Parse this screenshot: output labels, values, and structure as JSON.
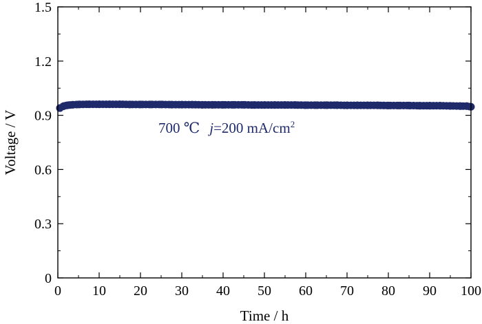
{
  "chart_data": {
    "type": "scatter",
    "title": "",
    "xlabel": "Time / h",
    "ylabel": "Voltage / V",
    "xlim": [
      0,
      100
    ],
    "ylim": [
      0,
      1.5
    ],
    "xticks": [
      0,
      10,
      20,
      30,
      40,
      50,
      60,
      70,
      80,
      90,
      100
    ],
    "yticks": [
      0,
      0.3,
      0.6,
      0.9,
      1.2,
      1.5
    ],
    "xtick_labels": [
      "0",
      "10",
      "20",
      "30",
      "40",
      "50",
      "60",
      "70",
      "80",
      "90",
      "100"
    ],
    "ytick_labels": [
      "0",
      "0.3",
      "0.6",
      "0.9",
      "1.2",
      "1.5"
    ],
    "grid": false,
    "marker_color": "#1f2a6b",
    "annotation": {
      "temp": "700 ℃",
      "j_var": "j",
      "j_rest": "=200 mA/cm",
      "j_sup": "2",
      "color": "#1f2a6b"
    },
    "series": [
      {
        "name": "",
        "x": [
          0.5,
          1.5,
          2.5,
          3.5,
          5,
          7.5,
          10,
          12.5,
          15,
          17.5,
          20,
          22.5,
          25,
          27.5,
          30,
          32.5,
          35,
          37.5,
          40,
          42.5,
          45,
          47.5,
          50,
          52.5,
          55,
          57.5,
          60,
          62.5,
          65,
          67.5,
          70,
          72.5,
          75,
          77.5,
          80,
          82.5,
          85,
          87.5,
          90,
          92.5,
          95,
          97.5,
          99,
          100
        ],
        "y": [
          0.94,
          0.952,
          0.956,
          0.958,
          0.96,
          0.961,
          0.961,
          0.961,
          0.961,
          0.96,
          0.96,
          0.96,
          0.96,
          0.959,
          0.959,
          0.959,
          0.958,
          0.958,
          0.958,
          0.958,
          0.958,
          0.957,
          0.957,
          0.957,
          0.957,
          0.957,
          0.956,
          0.956,
          0.956,
          0.956,
          0.955,
          0.955,
          0.955,
          0.955,
          0.954,
          0.954,
          0.954,
          0.953,
          0.953,
          0.953,
          0.952,
          0.951,
          0.951,
          0.947
        ]
      }
    ]
  }
}
